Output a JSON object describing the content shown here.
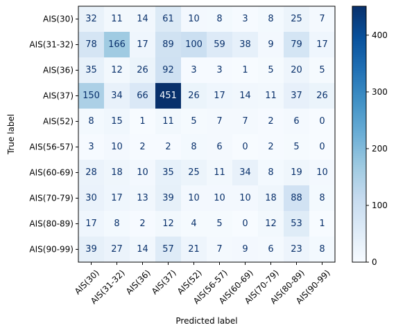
{
  "chart_data": {
    "type": "heatmap",
    "title": "",
    "xlabel": "Predicted label",
    "ylabel": "True label",
    "labels": [
      "AIS(30)",
      "AIS(31-32)",
      "AIS(36)",
      "AIS(37)",
      "AIS(52)",
      "AIS(56-57)",
      "AIS(60-69)",
      "AIS(70-79)",
      "AIS(80-89)",
      "AIS(90-99)"
    ],
    "matrix": [
      [
        32,
        11,
        14,
        61,
        10,
        8,
        3,
        8,
        25,
        7
      ],
      [
        78,
        166,
        17,
        89,
        100,
        59,
        38,
        9,
        79,
        17
      ],
      [
        35,
        12,
        26,
        92,
        3,
        3,
        1,
        5,
        20,
        5
      ],
      [
        150,
        34,
        66,
        451,
        26,
        17,
        14,
        11,
        37,
        26
      ],
      [
        8,
        15,
        1,
        11,
        5,
        7,
        7,
        2,
        6,
        0
      ],
      [
        3,
        10,
        2,
        2,
        8,
        6,
        0,
        2,
        5,
        0
      ],
      [
        28,
        18,
        10,
        35,
        25,
        11,
        34,
        8,
        19,
        10
      ],
      [
        30,
        17,
        13,
        39,
        10,
        10,
        10,
        18,
        88,
        8
      ],
      [
        17,
        8,
        2,
        12,
        4,
        5,
        0,
        12,
        53,
        1
      ],
      [
        39,
        27,
        14,
        57,
        21,
        7,
        9,
        6,
        23,
        8
      ]
    ],
    "colormap": "Blues",
    "color_range": [
      0,
      451
    ],
    "colorbar_ticks": [
      0,
      100,
      200,
      300,
      400
    ],
    "grid": false
  }
}
